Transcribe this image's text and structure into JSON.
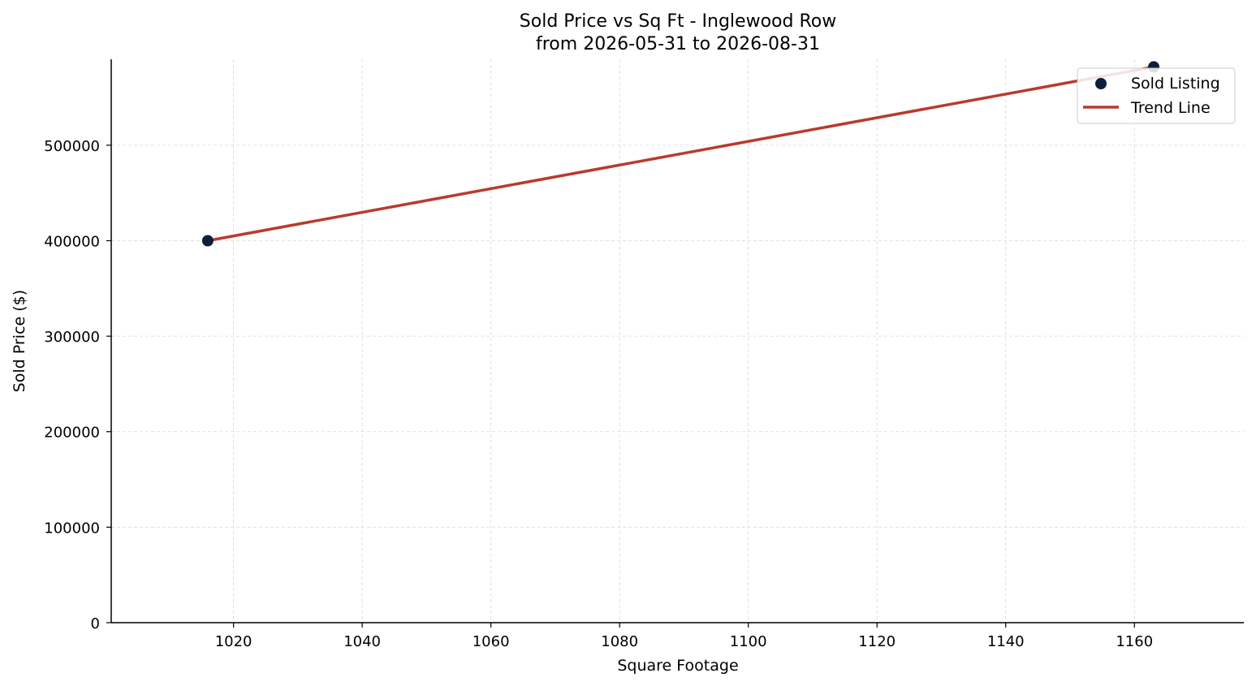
{
  "chart_data": {
    "type": "scatter",
    "title_lines": [
      "Sold Price vs Sq Ft - Inglewood Row",
      "from 2026-05-31 to 2026-08-31"
    ],
    "xlabel": "Square Footage",
    "ylabel": "Sold Price ($)",
    "xlim": [
      1001,
      1177
    ],
    "ylim": [
      0,
      590000
    ],
    "xticks": [
      1020,
      1040,
      1060,
      1080,
      1100,
      1120,
      1140,
      1160
    ],
    "yticks": [
      0,
      100000,
      200000,
      300000,
      400000,
      500000
    ],
    "grid": true,
    "legend_position": "top-right",
    "series": [
      {
        "name": "Sold Listing",
        "kind": "scatter",
        "color": "#0b1f3a",
        "points": [
          {
            "x": 1016,
            "y": 400000
          },
          {
            "x": 1163,
            "y": 582000
          }
        ]
      },
      {
        "name": "Trend Line",
        "kind": "line",
        "color": "#b83b2e",
        "points": [
          {
            "x": 1016,
            "y": 400000
          },
          {
            "x": 1163,
            "y": 582000
          }
        ]
      }
    ]
  }
}
